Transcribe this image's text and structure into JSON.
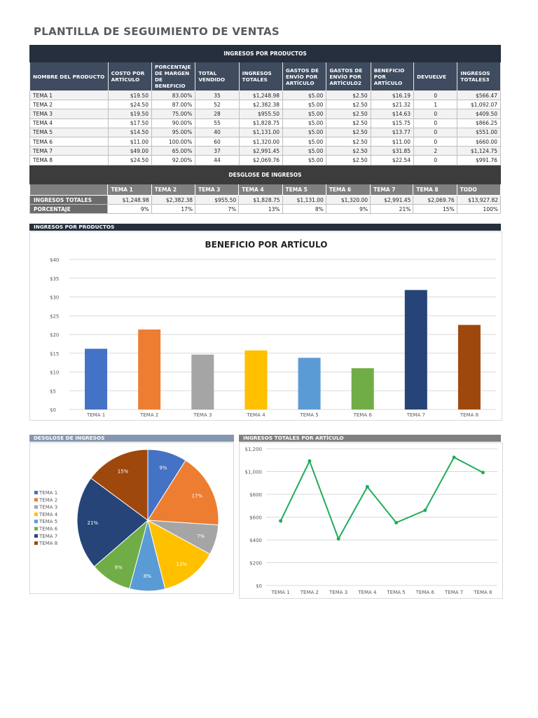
{
  "page_title": "PLANTILLA DE SEGUIMIENTO DE VENTAS",
  "products_table": {
    "band": "INGRESOS POR PRODUCTOS",
    "headers": [
      "NOMBRE DEL PRODUCTO",
      "COSTO POR ARTÍCULO",
      "PORCENTAJE DE MARGEN DE BENEFICIO",
      "TOTAL VENDIDO",
      "INGRESOS TOTALES",
      "GASTOS DE ENVÍO POR ARTÍCULO",
      "GASTOS DE ENVÍO POR ARTÍCULO2",
      "BENEFICIO POR ARTÍCULO",
      "DEVUELVE",
      "INGRESOS TOTALES3"
    ],
    "rows": [
      [
        "TEMA 1",
        "$19.50",
        "83.00%",
        "35",
        "$1,248.98",
        "$5.00",
        "$2.50",
        "$16.19",
        "0",
        "$566.47"
      ],
      [
        "TEMA 2",
        "$24.50",
        "87.00%",
        "52",
        "$2,382.38",
        "$5.00",
        "$2.50",
        "$21.32",
        "1",
        "$1,092.07"
      ],
      [
        "TEMA 3",
        "$19.50",
        "75.00%",
        "28",
        "$955.50",
        "$5.00",
        "$2.50",
        "$14.63",
        "0",
        "$409.50"
      ],
      [
        "TEMA 4",
        "$17.50",
        "90.00%",
        "55",
        "$1,828.75",
        "$5.00",
        "$2.50",
        "$15.75",
        "0",
        "$866.25"
      ],
      [
        "TEMA 5",
        "$14.50",
        "95.00%",
        "40",
        "$1,131.00",
        "$5.00",
        "$2.50",
        "$13.77",
        "0",
        "$551.00"
      ],
      [
        "TEMA 6",
        "$11.00",
        "100.00%",
        "60",
        "$1,320.00",
        "$5.00",
        "$2.50",
        "$11.00",
        "0",
        "$660.00"
      ],
      [
        "TEMA 7",
        "$49.00",
        "65.00%",
        "37",
        "$2,991.45",
        "$5.00",
        "$2.50",
        "$31.85",
        "2",
        "$1,124.75"
      ],
      [
        "TEMA 8",
        "$24.50",
        "92.00%",
        "44",
        "$2,069.76",
        "$5.00",
        "$2.50",
        "$22.54",
        "0",
        "$991.76"
      ]
    ]
  },
  "breakdown_table": {
    "band": "DESGLOSE DE INGRESOS",
    "headers": [
      "TEMA 1",
      "TEMA 2",
      "TEMA 3",
      "TEMA 4",
      "TEMA 5",
      "TEMA 6",
      "TEMA 7",
      "TEMA 8",
      "TODO"
    ],
    "rows": [
      {
        "label": "INGRESOS TOTALES",
        "values": [
          "$1,248.98",
          "$2,382.38",
          "$955.50",
          "$1,828.75",
          "$1,131.00",
          "$1,320.00",
          "$2,991.45",
          "$2,069.76",
          "$13,927.82"
        ]
      },
      {
        "label": "PORCENTAJE",
        "values": [
          "9%",
          "17%",
          "7%",
          "13%",
          "8%",
          "9%",
          "21%",
          "15%",
          "100%"
        ]
      }
    ]
  },
  "sections": {
    "bar": "INGRESOS POR PRODUCTOS",
    "pie": "DESGLOSE DE INGRESOS",
    "line": "INGRESOS TOTALES POR ARTÍCULO"
  },
  "colors": {
    "tema1": "#4472c4",
    "tema2": "#ed7d31",
    "tema3": "#a5a5a5",
    "tema4": "#ffc000",
    "tema5": "#5b9bd5",
    "tema6": "#70ad47",
    "tema7": "#264478",
    "tema8": "#9e480e",
    "line": "#1fad5a",
    "section_dark": "#262f3d",
    "section_blue": "#8497b0",
    "section_gray": "#808080"
  },
  "chart_data": [
    {
      "type": "bar",
      "title": "BENEFICIO POR ARTÍCULO",
      "categories": [
        "TEMA 1",
        "TEMA 2",
        "TEMA 3",
        "TEMA 4",
        "TEMA 5",
        "TEMA 6",
        "TEMA 7",
        "TEMA 8"
      ],
      "values": [
        16.19,
        21.32,
        14.63,
        15.75,
        13.77,
        11.0,
        31.85,
        22.54
      ],
      "ylim": [
        0,
        40
      ],
      "yticks": [
        "$0",
        "$5",
        "$10",
        "$15",
        "$20",
        "$25",
        "$30",
        "$35",
        "$40"
      ],
      "grid": true
    },
    {
      "type": "pie",
      "categories": [
        "TEMA 1",
        "TEMA 2",
        "TEMA 3",
        "TEMA 4",
        "TEMA 5",
        "TEMA 6",
        "TEMA 7",
        "TEMA 8"
      ],
      "values": [
        1248.98,
        2382.38,
        955.5,
        1828.75,
        1131.0,
        1320.0,
        2991.45,
        2069.76
      ],
      "labels": [
        "9%",
        "17%",
        "7%",
        "13%",
        "8%",
        "9%",
        "21%",
        "15%"
      ],
      "legend": "left"
    },
    {
      "type": "line",
      "categories": [
        "TEMA 1",
        "TEMA 2",
        "TEMA 3",
        "TEMA 4",
        "TEMA 5",
        "TEMA 6",
        "TEMA 7",
        "TEMA 8"
      ],
      "values": [
        566.47,
        1092.07,
        409.5,
        866.25,
        551.0,
        660.0,
        1124.75,
        991.76
      ],
      "ylim": [
        0,
        1200
      ],
      "yticks": [
        "$0",
        "$200",
        "$400",
        "$600",
        "$800",
        "$1,000",
        "$1,200"
      ],
      "grid": true
    }
  ]
}
